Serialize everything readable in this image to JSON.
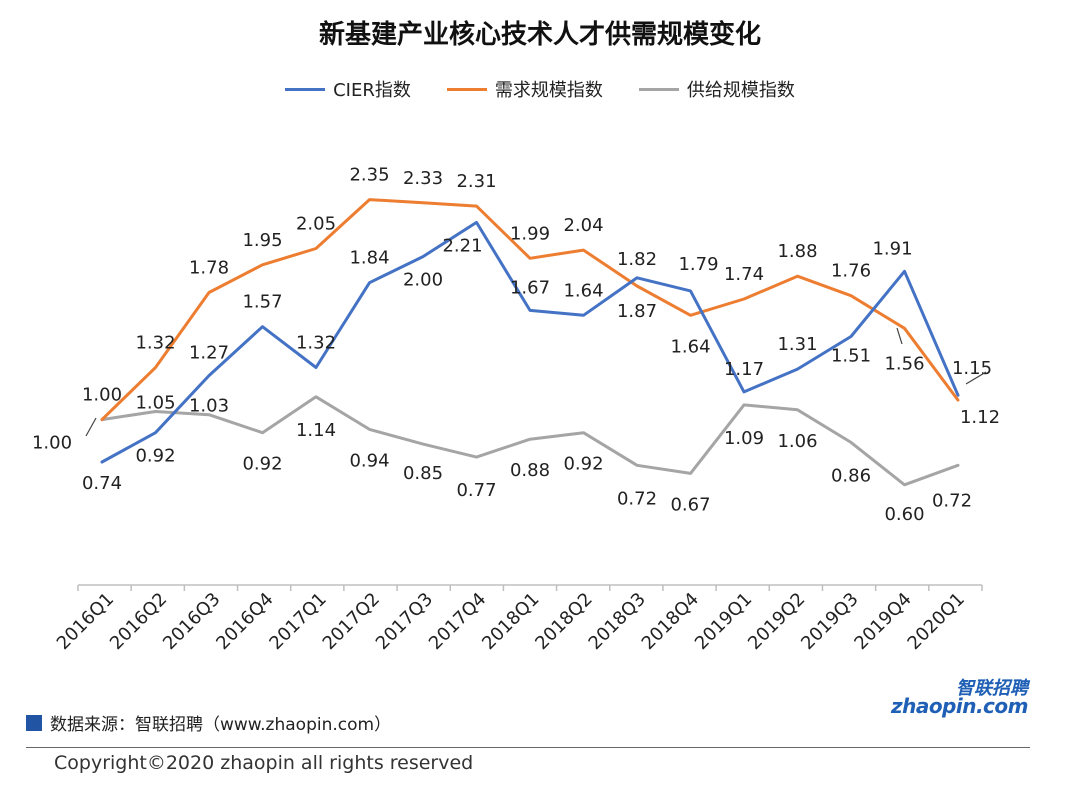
{
  "chart_data": {
    "type": "line",
    "title": "新基建产业核心技术人才供需规模变化",
    "categories": [
      "2016Q1",
      "2016Q2",
      "2016Q3",
      "2016Q4",
      "2017Q1",
      "2017Q2",
      "2017Q3",
      "2017Q4",
      "2018Q1",
      "2018Q2",
      "2018Q3",
      "2018Q4",
      "2019Q1",
      "2019Q2",
      "2019Q3",
      "2019Q4",
      "2020Q1"
    ],
    "series": [
      {
        "name": "CIER指数",
        "color": "#4472c4",
        "values": [
          0.74,
          0.92,
          1.27,
          1.57,
          1.32,
          1.84,
          2.0,
          2.21,
          1.67,
          1.64,
          1.87,
          1.79,
          1.17,
          1.31,
          1.51,
          1.91,
          1.15
        ],
        "label_text": [
          "0.74",
          "0.92",
          "1.27",
          "1.57",
          "1.32",
          "1.84",
          "2.00",
          "2.21",
          "1.67",
          "1.64",
          "1.87",
          "1.79",
          "1.17",
          "1.31",
          "1.51",
          "1.91",
          "1.15"
        ]
      },
      {
        "name": "需求规模指数",
        "color": "#ed7d31",
        "values": [
          1.0,
          1.32,
          1.78,
          1.95,
          2.05,
          2.35,
          2.33,
          2.31,
          1.99,
          2.04,
          1.82,
          1.64,
          1.74,
          1.88,
          1.76,
          1.56,
          1.12
        ],
        "label_text": [
          "1.00",
          "1.32",
          "1.78",
          "1.95",
          "2.05",
          "2.35",
          "2.33",
          "2.31",
          "1.99",
          "2.04",
          "1.82",
          "1.64",
          "1.74",
          "1.88",
          "1.76",
          "1.56",
          "1.12"
        ]
      },
      {
        "name": "供给规模指数",
        "color": "#a5a5a5",
        "values": [
          1.0,
          1.05,
          1.03,
          0.92,
          1.14,
          0.94,
          0.85,
          0.77,
          0.88,
          0.92,
          0.72,
          0.67,
          1.09,
          1.06,
          0.86,
          0.6,
          0.72
        ],
        "label_text": [
          "1.00",
          "1.05",
          "1.03",
          "0.92",
          "1.14",
          "0.94",
          "0.85",
          "0.77",
          "0.88",
          "0.92",
          "0.72",
          "0.67",
          "1.09",
          "1.06",
          "0.86",
          "0.60",
          "0.72"
        ]
      }
    ],
    "xlabel": "",
    "ylabel": "",
    "legend_position": "top-center"
  },
  "source": "数据来源：智联招聘（www.zhaopin.com）",
  "copyright": "Copyright©2020 zhaopin all rights reserved",
  "logo": {
    "cn": "智联招聘",
    "en": "zhaopin.com"
  }
}
